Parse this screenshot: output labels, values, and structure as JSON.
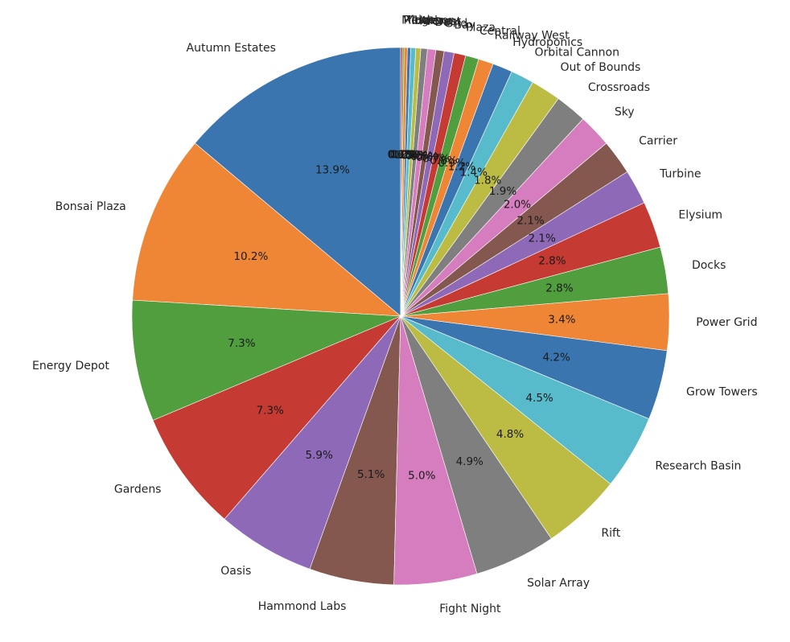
{
  "chart_data": {
    "type": "pie",
    "title": "",
    "start_angle_deg": 90,
    "direction": "counterclockwise",
    "autopct_format": "{:.1f}%",
    "slices": [
      {
        "label": "Autumn Estates",
        "value": 13.9,
        "color": "#3a75b0"
      },
      {
        "label": "Bonsai Plaza",
        "value": 10.2,
        "color": "#ef8636"
      },
      {
        "label": "Energy Depot",
        "value": 7.3,
        "color": "#519e3e"
      },
      {
        "label": "Gardens",
        "value": 7.3,
        "color": "#c53a32"
      },
      {
        "label": "Oasis",
        "value": 5.9,
        "color": "#8d69b8"
      },
      {
        "label": "Hammond Labs",
        "value": 5.1,
        "color": "#84584e"
      },
      {
        "label": "Fight Night",
        "value": 5.0,
        "color": "#d57dbe"
      },
      {
        "label": "Solar Array",
        "value": 4.9,
        "color": "#7f7f7f"
      },
      {
        "label": "Rift",
        "value": 4.8,
        "color": "#bcbc45"
      },
      {
        "label": "Research Basin",
        "value": 4.5,
        "color": "#58bbcc"
      },
      {
        "label": "Grow Towers",
        "value": 4.2,
        "color": "#3a75b0"
      },
      {
        "label": "Power Grid",
        "value": 3.4,
        "color": "#ef8636"
      },
      {
        "label": "Docks",
        "value": 2.8,
        "color": "#519e3e"
      },
      {
        "label": "Elysium",
        "value": 2.8,
        "color": "#c53a32"
      },
      {
        "label": "Turbine",
        "value": 2.1,
        "color": "#8d69b8"
      },
      {
        "label": "Carrier",
        "value": 2.1,
        "color": "#84584e"
      },
      {
        "label": "Sky",
        "value": 2.0,
        "color": "#d57dbe"
      },
      {
        "label": "Crossroads",
        "value": 1.9,
        "color": "#7f7f7f"
      },
      {
        "label": "Out of Bounds",
        "value": 1.8,
        "color": "#bcbc45"
      },
      {
        "label": "Orbital Cannon",
        "value": 1.4,
        "color": "#58bbcc"
      },
      {
        "label": "Hydroponics",
        "value": 1.2,
        "color": "#3a75b0"
      },
      {
        "label": "Railway West",
        "value": 0.9,
        "color": "#ef8636"
      },
      {
        "label": "Central",
        "value": 0.8,
        "color": "#519e3e"
      },
      {
        "label": "Plaza",
        "value": 0.7,
        "color": "#c53a32"
      },
      {
        "label": "Bay",
        "value": 0.6,
        "color": "#8d69b8"
      },
      {
        "label": "Grid",
        "value": 0.5,
        "color": "#84584e"
      },
      {
        "label": "Dam",
        "value": 0.5,
        "color": "#d57dbe"
      },
      {
        "label": "Forest",
        "value": 0.4,
        "color": "#7f7f7f"
      },
      {
        "label": "Arena",
        "value": 0.3,
        "color": "#bcbc45"
      },
      {
        "label": "Harbor",
        "value": 0.3,
        "color": "#58bbcc"
      },
      {
        "label": "Tower",
        "value": 0.2,
        "color": "#3a75b0"
      },
      {
        "label": "Yard",
        "value": 0.2,
        "color": "#ef8636"
      },
      {
        "label": "Ridge",
        "value": 0.1,
        "color": "#519e3e"
      },
      {
        "label": "Mesa",
        "value": 0.1,
        "color": "#c53a32"
      }
    ]
  }
}
